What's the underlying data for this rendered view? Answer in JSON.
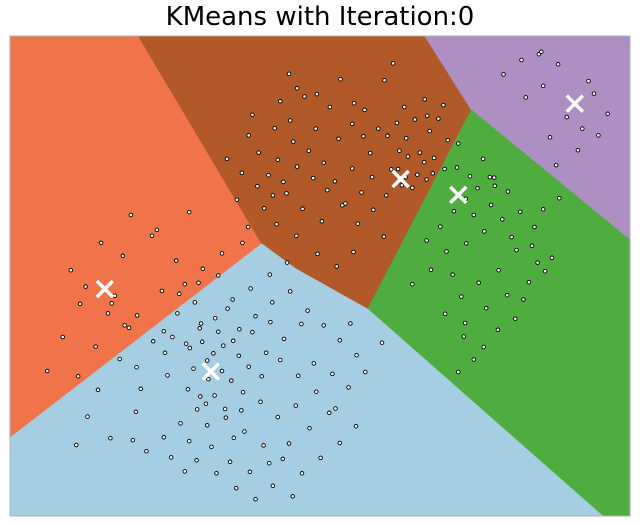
{
  "chart_data": {
    "type": "scatter",
    "title": "KMeans with Iteration:0",
    "xlabel": "",
    "ylabel": "",
    "xlim": [
      0,
      100
    ],
    "ylim": [
      0,
      100
    ],
    "grid": false,
    "legend": "none",
    "colors": {
      "region_orange": "#f0734a",
      "region_brown": "#b15928",
      "region_purple": "#ad8fc4",
      "region_green": "#4fad40",
      "region_blue": "#a6cee3",
      "point_edge": "#000000",
      "point_fill": "#ffffff",
      "centroid": "#ffffff"
    },
    "regions": [
      {
        "cluster": "orange",
        "color": "#f0734a",
        "polygon": [
          [
            0,
            100
          ],
          [
            20.7,
            100
          ],
          [
            40.6,
            56.7
          ],
          [
            0,
            16.3
          ]
        ]
      },
      {
        "cluster": "brown",
        "color": "#b15928",
        "polygon": [
          [
            20.7,
            100
          ],
          [
            66.9,
            100
          ],
          [
            74.4,
            84.6
          ],
          [
            57.7,
            43.1
          ],
          [
            46.1,
            51.5
          ],
          [
            40.6,
            56.7
          ]
        ]
      },
      {
        "cluster": "purple",
        "color": "#ad8fc4",
        "polygon": [
          [
            66.9,
            100
          ],
          [
            100,
            100
          ],
          [
            100,
            57.5
          ],
          [
            74.4,
            84.6
          ]
        ]
      },
      {
        "cluster": "green",
        "color": "#4fad40",
        "polygon": [
          [
            74.4,
            84.6
          ],
          [
            100,
            57.5
          ],
          [
            100,
            0
          ],
          [
            95.6,
            0
          ],
          [
            57.7,
            43.1
          ]
        ]
      },
      {
        "cluster": "blue",
        "color": "#a6cee3",
        "polygon": [
          [
            0,
            16.3
          ],
          [
            40.6,
            56.7
          ],
          [
            46.1,
            51.5
          ],
          [
            57.7,
            43.1
          ],
          [
            95.6,
            0
          ],
          [
            0,
            0
          ]
        ]
      }
    ],
    "centroids": [
      {
        "x": 15.3,
        "y": 47.3
      },
      {
        "x": 32.4,
        "y": 30.1
      },
      {
        "x": 63.0,
        "y": 70.2
      },
      {
        "x": 72.3,
        "y": 66.9
      },
      {
        "x": 91.1,
        "y": 85.9
      }
    ],
    "points": [
      [
        45.0,
        92.1
      ],
      [
        46.3,
        89.1
      ],
      [
        47.5,
        87.4
      ],
      [
        43.6,
        86.4
      ],
      [
        49.5,
        87.9
      ],
      [
        51.6,
        85.2
      ],
      [
        53.3,
        91.0
      ],
      [
        55.5,
        86.0
      ],
      [
        57.2,
        84.6
      ],
      [
        60.4,
        90.8
      ],
      [
        61.8,
        94.3
      ],
      [
        59.4,
        80.7
      ],
      [
        62.4,
        81.9
      ],
      [
        63.9,
        78.7
      ],
      [
        65.3,
        82.6
      ],
      [
        67.7,
        80.2
      ],
      [
        69.1,
        82.8
      ],
      [
        66.1,
        75.7
      ],
      [
        68.4,
        74.6
      ],
      [
        70.6,
        78.3
      ],
      [
        72.3,
        77.6
      ],
      [
        70.1,
        72.3
      ],
      [
        67.2,
        70.1
      ],
      [
        64.9,
        68.4
      ],
      [
        61.5,
        72.2
      ],
      [
        58.1,
        75.6
      ],
      [
        55.2,
        72.4
      ],
      [
        52.4,
        69.7
      ],
      [
        50.6,
        73.6
      ],
      [
        48.2,
        76.1
      ],
      [
        45.7,
        78.0
      ],
      [
        43.2,
        74.2
      ],
      [
        38.5,
        79.3
      ],
      [
        40.1,
        75.7
      ],
      [
        41.7,
        71.0
      ],
      [
        44.6,
        67.2
      ],
      [
        47.2,
        64.0
      ],
      [
        50.3,
        61.4
      ],
      [
        53.6,
        64.7
      ],
      [
        56.1,
        60.9
      ],
      [
        58.6,
        63.8
      ],
      [
        60.3,
        58.2
      ],
      [
        55.4,
        55.0
      ],
      [
        52.7,
        52.0
      ],
      [
        49.6,
        54.6
      ],
      [
        46.2,
        58.4
      ],
      [
        43.0,
        60.8
      ],
      [
        41.0,
        64.1
      ],
      [
        38.4,
        60.2
      ],
      [
        36.6,
        65.9
      ],
      [
        62.8,
        76.1
      ],
      [
        64.2,
        74.9
      ],
      [
        66.8,
        73.7
      ],
      [
        68.2,
        71.4
      ],
      [
        65.7,
        71.1
      ],
      [
        63.2,
        68.9
      ],
      [
        60.7,
        66.8
      ],
      [
        58.4,
        70.6
      ],
      [
        56.7,
        67.4
      ],
      [
        54.1,
        65.1
      ],
      [
        51.2,
        67.9
      ],
      [
        48.9,
        70.4
      ],
      [
        46.3,
        72.8
      ],
      [
        44.1,
        69.6
      ],
      [
        42.4,
        66.8
      ],
      [
        39.9,
        68.7
      ],
      [
        37.4,
        71.5
      ],
      [
        35.0,
        74.4
      ],
      [
        39.1,
        83.6
      ],
      [
        42.7,
        80.8
      ],
      [
        45.2,
        82.4
      ],
      [
        53.0,
        78.6
      ],
      [
        57.0,
        79.1
      ],
      [
        60.9,
        79.2
      ],
      [
        63.6,
        85.2
      ],
      [
        66.9,
        86.8
      ],
      [
        69.9,
        85.6
      ],
      [
        67.3,
        83.4
      ],
      [
        55.2,
        81.7
      ],
      [
        49.3,
        80.7
      ],
      [
        72.1,
        72.6
      ],
      [
        74.2,
        70.8
      ],
      [
        76.3,
        74.4
      ],
      [
        78.1,
        70.5
      ],
      [
        80.3,
        67.6
      ],
      [
        77.6,
        64.8
      ],
      [
        74.8,
        62.7
      ],
      [
        71.6,
        63.5
      ],
      [
        69.4,
        60.3
      ],
      [
        67.2,
        57.4
      ],
      [
        70.4,
        55.1
      ],
      [
        73.6,
        56.8
      ],
      [
        76.5,
        59.3
      ],
      [
        79.4,
        61.8
      ],
      [
        82.3,
        63.4
      ],
      [
        84.6,
        60.2
      ],
      [
        86.0,
        63.9
      ],
      [
        88.6,
        66.2
      ],
      [
        85.1,
        52.8
      ],
      [
        81.7,
        55.4
      ],
      [
        78.8,
        51.2
      ],
      [
        75.6,
        48.6
      ],
      [
        72.8,
        45.7
      ],
      [
        70.2,
        42.1
      ],
      [
        73.4,
        40.2
      ],
      [
        76.8,
        43.3
      ],
      [
        80.2,
        46.0
      ],
      [
        83.7,
        48.7
      ],
      [
        86.3,
        51.0
      ],
      [
        64.9,
        48.3
      ],
      [
        67.9,
        51.3
      ],
      [
        77.4,
        70.6
      ],
      [
        73.5,
        66.1
      ],
      [
        75.4,
        68.3
      ],
      [
        78.2,
        68.8
      ],
      [
        71.4,
        50.3
      ],
      [
        80.9,
        58.1
      ],
      [
        84.2,
        56.3
      ],
      [
        87.4,
        53.8
      ],
      [
        82.8,
        45.1
      ],
      [
        76.4,
        35.2
      ],
      [
        78.7,
        38.8
      ],
      [
        73.2,
        37.4
      ],
      [
        72.3,
        30.0
      ],
      [
        74.8,
        32.6
      ],
      [
        81.5,
        41.1
      ],
      [
        62.6,
        72.3
      ],
      [
        63.8,
        70.6
      ],
      [
        79.6,
        92.0
      ],
      [
        82.5,
        95.0
      ],
      [
        85.3,
        96.2
      ],
      [
        88.4,
        94.1
      ],
      [
        86.0,
        89.6
      ],
      [
        83.2,
        87.2
      ],
      [
        89.8,
        83.1
      ],
      [
        92.3,
        80.7
      ],
      [
        94.9,
        79.3
      ],
      [
        91.6,
        76.2
      ],
      [
        88.1,
        73.1
      ],
      [
        94.2,
        88.0
      ],
      [
        96.4,
        83.8
      ],
      [
        93.3,
        90.6
      ],
      [
        85.7,
        96.7
      ],
      [
        87.1,
        78.9
      ],
      [
        19.5,
        62.7
      ],
      [
        23.7,
        59.6
      ],
      [
        18.2,
        54.2
      ],
      [
        14.7,
        56.9
      ],
      [
        9.8,
        51.2
      ],
      [
        12.2,
        47.8
      ],
      [
        16.4,
        44.3
      ],
      [
        20.5,
        41.8
      ],
      [
        24.5,
        46.9
      ],
      [
        28.2,
        48.3
      ],
      [
        31.1,
        51.5
      ],
      [
        34.2,
        54.7
      ],
      [
        37.5,
        56.9
      ],
      [
        26.8,
        53.2
      ],
      [
        22.9,
        58.4
      ],
      [
        11.3,
        44.2
      ],
      [
        15.8,
        42.2
      ],
      [
        19.2,
        39.2
      ],
      [
        23.1,
        36.4
      ],
      [
        27.0,
        42.2
      ],
      [
        29.8,
        44.5
      ],
      [
        33.6,
        50.1
      ],
      [
        13.8,
        35.3
      ],
      [
        17.7,
        32.7
      ],
      [
        6.0,
        30.2
      ],
      [
        11.0,
        29.1
      ],
      [
        14.2,
        26.3
      ],
      [
        8.5,
        37.3
      ],
      [
        20.4,
        31.0
      ],
      [
        24.8,
        38.5
      ],
      [
        28.4,
        35.9
      ],
      [
        30.6,
        39.1
      ],
      [
        35.1,
        43.2
      ],
      [
        28.9,
        63.3
      ],
      [
        18.5,
        39.7
      ],
      [
        16.9,
        45.9
      ],
      [
        26.2,
        37.3
      ],
      [
        29.0,
        35.0
      ],
      [
        31.8,
        32.4
      ],
      [
        34.4,
        35.5
      ],
      [
        37.0,
        38.9
      ],
      [
        39.6,
        41.6
      ],
      [
        42.3,
        44.5
      ],
      [
        45.2,
        46.8
      ],
      [
        48.0,
        42.8
      ],
      [
        50.6,
        39.7
      ],
      [
        53.2,
        36.6
      ],
      [
        55.9,
        33.5
      ],
      [
        47.0,
        40.0
      ],
      [
        44.2,
        36.9
      ],
      [
        41.3,
        34.0
      ],
      [
        38.5,
        31.1
      ],
      [
        35.7,
        28.2
      ],
      [
        33.0,
        25.1
      ],
      [
        30.2,
        22.2
      ],
      [
        27.5,
        19.3
      ],
      [
        24.8,
        16.4
      ],
      [
        22.0,
        13.5
      ],
      [
        25.4,
        29.3
      ],
      [
        28.7,
        26.4
      ],
      [
        31.6,
        23.4
      ],
      [
        34.8,
        20.5
      ],
      [
        37.8,
        17.6
      ],
      [
        40.9,
        14.7
      ],
      [
        44.0,
        11.9
      ],
      [
        47.1,
        8.9
      ],
      [
        50.1,
        12.1
      ],
      [
        53.2,
        15.2
      ],
      [
        55.8,
        18.7
      ],
      [
        52.5,
        22.4
      ],
      [
        49.4,
        25.9
      ],
      [
        46.5,
        29.2
      ],
      [
        43.6,
        32.5
      ],
      [
        40.6,
        29.1
      ],
      [
        37.6,
        25.8
      ],
      [
        34.7,
        22.3
      ],
      [
        31.8,
        18.9
      ],
      [
        28.9,
        15.6
      ],
      [
        26.0,
        12.2
      ],
      [
        33.3,
        8.9
      ],
      [
        36.5,
        5.8
      ],
      [
        39.6,
        3.5
      ],
      [
        42.4,
        6.3
      ],
      [
        45.6,
        4.1
      ],
      [
        30.1,
        11.6
      ],
      [
        32.5,
        14.4
      ],
      [
        35.5,
        11.3
      ],
      [
        38.7,
        9.2
      ],
      [
        41.8,
        11.0
      ],
      [
        45.0,
        15.1
      ],
      [
        48.3,
        18.3
      ],
      [
        51.5,
        21.5
      ],
      [
        54.6,
        26.8
      ],
      [
        57.3,
        30.0
      ],
      [
        60.0,
        36.1
      ],
      [
        35.9,
        45.1
      ],
      [
        38.8,
        47.4
      ],
      [
        41.9,
        50.3
      ],
      [
        44.7,
        52.8
      ],
      [
        27.3,
        46.3
      ],
      [
        30.4,
        48.6
      ],
      [
        33.1,
        41.2
      ],
      [
        36.0,
        36.5
      ],
      [
        39.1,
        38.3
      ],
      [
        42.0,
        40.4
      ],
      [
        21.1,
        26.5
      ],
      [
        20.3,
        21.7
      ],
      [
        19.8,
        15.8
      ],
      [
        28.2,
        9.3
      ],
      [
        29.6,
        30.7
      ],
      [
        32.0,
        28.5
      ],
      [
        36.9,
        33.4
      ],
      [
        40.4,
        23.8
      ],
      [
        43.2,
        20.6
      ],
      [
        46.1,
        23.0
      ],
      [
        49.0,
        31.8
      ],
      [
        52.0,
        29.6
      ],
      [
        54.9,
        40.1
      ],
      [
        16.2,
        16.2
      ],
      [
        12.5,
        20.7
      ],
      [
        10.7,
        14.8
      ],
      [
        30.8,
        40.1
      ],
      [
        30.7,
        24.9
      ],
      [
        32.8,
        33.9
      ],
      [
        37.3,
        22.0
      ],
      [
        36.1,
        16.3
      ],
      [
        31.0,
        36.3
      ],
      [
        33.6,
        38.4
      ],
      [
        25.0,
        34.0
      ],
      [
        34.2,
        30.2
      ]
    ]
  }
}
